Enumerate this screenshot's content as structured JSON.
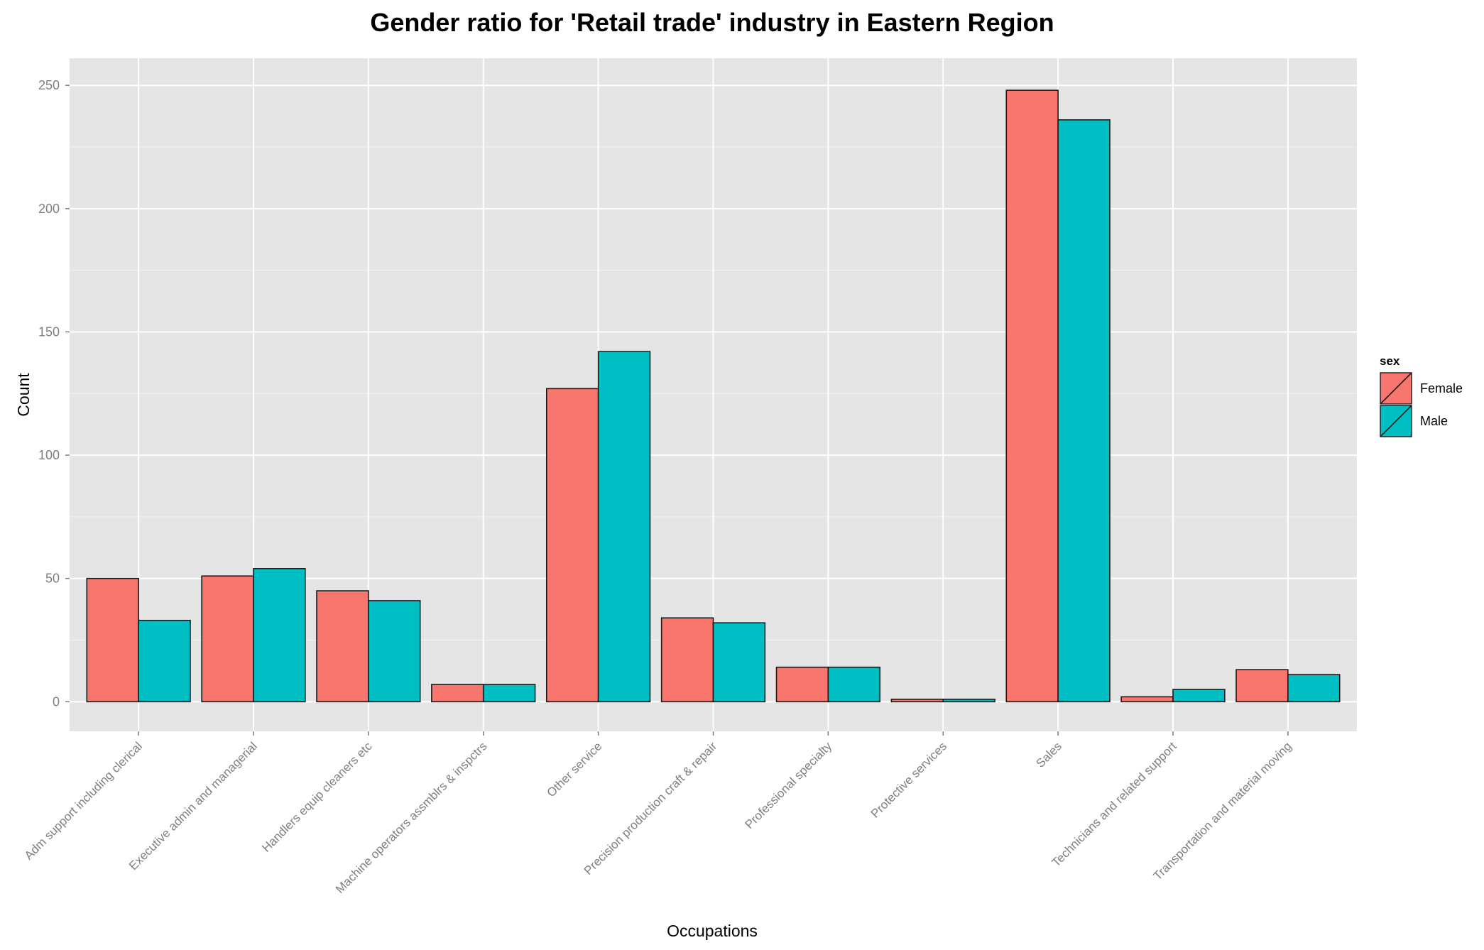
{
  "chart_data": {
    "type": "bar",
    "title": "Gender ratio for 'Retail trade' industry in Eastern Region",
    "xlabel": "Occupations",
    "ylabel": "Count",
    "ylim": [
      -12,
      261
    ],
    "yticks": [
      0,
      50,
      100,
      150,
      200,
      250
    ],
    "ytick_labels": [
      "0",
      "50",
      "100",
      "150",
      "200",
      "250"
    ],
    "grid": true,
    "legend_position": "right",
    "legend_title": "sex",
    "categories": [
      "Adm support including clerical",
      "Executive admin and managerial",
      "Handlers equip cleaners etc",
      "Machine operators assmblrs & inspctrs",
      "Other service",
      "Precision production craft & repair",
      "Professional specialty",
      "Protective services",
      "Sales",
      "Technicians and related support",
      "Transportation and material moving"
    ],
    "series": [
      {
        "name": "Female",
        "color": "#F8766D",
        "values": [
          50,
          51,
          45,
          7,
          127,
          34,
          14,
          1,
          248,
          2,
          13
        ]
      },
      {
        "name": "Male",
        "color": "#00BFC4",
        "values": [
          33,
          54,
          41,
          7,
          142,
          32,
          14,
          1,
          236,
          5,
          11
        ]
      }
    ]
  }
}
